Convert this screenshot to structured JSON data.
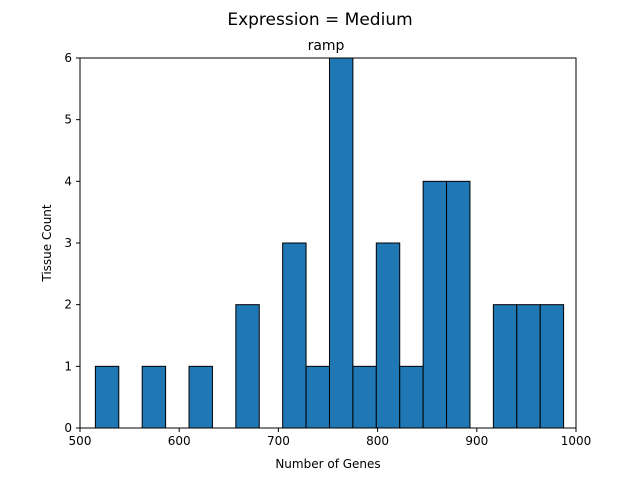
{
  "figure": {
    "suptitle": "Expression = Medium"
  },
  "chart_data": {
    "type": "bar",
    "title": "ramp",
    "xlabel": "Number of Genes",
    "ylabel": "Tissue Count",
    "xlim": [
      500,
      1000
    ],
    "ylim": [
      0,
      6
    ],
    "xticks": [
      500,
      600,
      700,
      800,
      900,
      1000
    ],
    "yticks": [
      0,
      1,
      2,
      3,
      4,
      5,
      6
    ],
    "bar_color": "#1f77b4",
    "edge_color": "#000000",
    "grid": false,
    "bins": [
      {
        "start": 515.5,
        "end": 539.1,
        "count": 1
      },
      {
        "start": 539.1,
        "end": 562.7,
        "count": 0
      },
      {
        "start": 562.7,
        "end": 586.3,
        "count": 1
      },
      {
        "start": 586.3,
        "end": 609.9,
        "count": 0
      },
      {
        "start": 609.9,
        "end": 633.5,
        "count": 1
      },
      {
        "start": 633.5,
        "end": 657.1,
        "count": 0
      },
      {
        "start": 657.1,
        "end": 680.7,
        "count": 2
      },
      {
        "start": 680.7,
        "end": 704.3,
        "count": 0
      },
      {
        "start": 704.3,
        "end": 727.9,
        "count": 3
      },
      {
        "start": 727.9,
        "end": 751.5,
        "count": 1
      },
      {
        "start": 751.5,
        "end": 775.1,
        "count": 6
      },
      {
        "start": 775.1,
        "end": 798.7,
        "count": 1
      },
      {
        "start": 798.7,
        "end": 822.3,
        "count": 3
      },
      {
        "start": 822.3,
        "end": 845.9,
        "count": 1
      },
      {
        "start": 845.9,
        "end": 869.5,
        "count": 4
      },
      {
        "start": 869.5,
        "end": 893.1,
        "count": 4
      },
      {
        "start": 893.1,
        "end": 916.7,
        "count": 0
      },
      {
        "start": 916.7,
        "end": 940.3,
        "count": 2
      },
      {
        "start": 940.3,
        "end": 963.9,
        "count": 2
      },
      {
        "start": 963.9,
        "end": 987.5,
        "count": 2
      }
    ]
  }
}
